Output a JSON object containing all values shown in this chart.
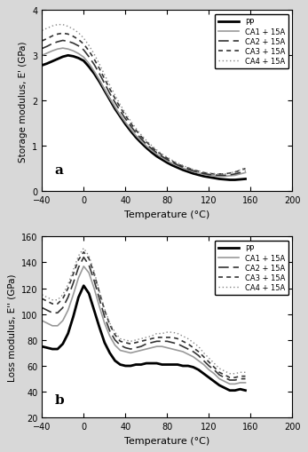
{
  "title_a": "a",
  "title_b": "b",
  "xlabel": "Temperature (°C)",
  "ylabel_a": "Storage modulus, E' (GPa)",
  "ylabel_b": "Loss modulus, E'' (GPa)",
  "xlim": [
    -40,
    200
  ],
  "xticks": [
    -40,
    0,
    40,
    80,
    120,
    160,
    200
  ],
  "ylim_a": [
    0,
    4.0
  ],
  "yticks_a": [
    0,
    1.0,
    2.0,
    3.0,
    4.0
  ],
  "ylim_b": [
    20,
    160
  ],
  "yticks_b": [
    20,
    40,
    60,
    80,
    100,
    120,
    140,
    160
  ],
  "legend_labels": [
    "PP",
    "CA1 + 15A",
    "CA2 + 15A",
    "CA3 + 15A",
    "CA4 + 15A"
  ],
  "line_styles": [
    {
      "color": "#000000",
      "lw": 2.0,
      "ls": "-"
    },
    {
      "color": "#999999",
      "lw": 1.2,
      "ls": "-"
    },
    {
      "color": "#333333",
      "lw": 1.2,
      "ls": "--",
      "dashes": [
        7,
        3
      ]
    },
    {
      "color": "#333333",
      "lw": 1.2,
      "ls": "--",
      "dashes": [
        3,
        2.5
      ]
    },
    {
      "color": "#888888",
      "lw": 1.0,
      "ls": ":",
      "dashes": [
        1,
        2
      ]
    }
  ],
  "temp": [
    -40,
    -35,
    -30,
    -25,
    -20,
    -15,
    -10,
    -5,
    0,
    5,
    10,
    15,
    20,
    25,
    30,
    35,
    40,
    45,
    50,
    55,
    60,
    65,
    70,
    75,
    80,
    85,
    90,
    95,
    100,
    105,
    110,
    115,
    120,
    125,
    130,
    135,
    140,
    145,
    150,
    155
  ],
  "storage_PP": [
    2.78,
    2.82,
    2.87,
    2.92,
    2.97,
    3.0,
    2.98,
    2.94,
    2.88,
    2.75,
    2.6,
    2.42,
    2.22,
    2.02,
    1.82,
    1.65,
    1.48,
    1.33,
    1.19,
    1.07,
    0.96,
    0.86,
    0.77,
    0.7,
    0.63,
    0.57,
    0.52,
    0.47,
    0.43,
    0.39,
    0.36,
    0.33,
    0.31,
    0.29,
    0.27,
    0.26,
    0.25,
    0.25,
    0.26,
    0.27
  ],
  "storage_CA1": [
    3.0,
    3.05,
    3.1,
    3.14,
    3.16,
    3.14,
    3.1,
    3.04,
    2.96,
    2.82,
    2.65,
    2.46,
    2.25,
    2.05,
    1.86,
    1.68,
    1.52,
    1.37,
    1.23,
    1.11,
    1.0,
    0.9,
    0.82,
    0.74,
    0.67,
    0.61,
    0.56,
    0.51,
    0.47,
    0.43,
    0.4,
    0.37,
    0.35,
    0.34,
    0.33,
    0.33,
    0.34,
    0.35,
    0.38,
    0.41
  ],
  "storage_CA2": [
    3.15,
    3.2,
    3.26,
    3.3,
    3.33,
    3.31,
    3.27,
    3.21,
    3.12,
    2.97,
    2.8,
    2.6,
    2.38,
    2.16,
    1.96,
    1.77,
    1.6,
    1.44,
    1.29,
    1.16,
    1.04,
    0.94,
    0.85,
    0.77,
    0.7,
    0.64,
    0.58,
    0.53,
    0.49,
    0.45,
    0.42,
    0.39,
    0.37,
    0.36,
    0.35,
    0.35,
    0.36,
    0.38,
    0.41,
    0.45
  ],
  "storage_CA3": [
    3.32,
    3.37,
    3.43,
    3.47,
    3.49,
    3.47,
    3.42,
    3.35,
    3.25,
    3.1,
    2.92,
    2.71,
    2.48,
    2.26,
    2.05,
    1.85,
    1.67,
    1.5,
    1.35,
    1.21,
    1.09,
    0.98,
    0.88,
    0.8,
    0.73,
    0.66,
    0.6,
    0.55,
    0.51,
    0.47,
    0.44,
    0.41,
    0.39,
    0.38,
    0.38,
    0.38,
    0.4,
    0.42,
    0.46,
    0.5
  ],
  "storage_CA4": [
    3.55,
    3.6,
    3.65,
    3.68,
    3.68,
    3.64,
    3.58,
    3.5,
    3.38,
    3.22,
    3.03,
    2.81,
    2.57,
    2.34,
    2.12,
    1.91,
    1.72,
    1.55,
    1.39,
    1.25,
    1.12,
    1.01,
    0.91,
    0.82,
    0.75,
    0.68,
    0.62,
    0.57,
    0.52,
    0.48,
    0.45,
    0.42,
    0.4,
    0.39,
    0.38,
    0.38,
    0.4,
    0.43,
    0.47,
    0.52
  ],
  "loss_PP": [
    75,
    74,
    73,
    73,
    77,
    85,
    98,
    113,
    122,
    116,
    103,
    90,
    78,
    70,
    64,
    61,
    60,
    60,
    61,
    61,
    62,
    62,
    62,
    61,
    61,
    61,
    61,
    60,
    60,
    59,
    57,
    54,
    51,
    48,
    45,
    43,
    41,
    41,
    42,
    41
  ],
  "loss_CA1": [
    95,
    93,
    91,
    91,
    95,
    103,
    115,
    128,
    137,
    132,
    120,
    106,
    93,
    83,
    76,
    72,
    71,
    70,
    71,
    72,
    73,
    74,
    75,
    75,
    74,
    73,
    72,
    71,
    69,
    67,
    64,
    61,
    57,
    54,
    50,
    48,
    46,
    46,
    47,
    47
  ],
  "loss_CA2": [
    105,
    103,
    101,
    101,
    105,
    113,
    124,
    136,
    144,
    138,
    126,
    112,
    98,
    87,
    80,
    76,
    74,
    73,
    74,
    75,
    77,
    78,
    79,
    79,
    79,
    78,
    77,
    75,
    73,
    71,
    68,
    64,
    60,
    57,
    53,
    51,
    49,
    49,
    50,
    50
  ],
  "loss_CA3": [
    112,
    110,
    108,
    108,
    112,
    120,
    131,
    142,
    148,
    143,
    131,
    117,
    103,
    92,
    84,
    79,
    78,
    77,
    78,
    79,
    80,
    81,
    82,
    82,
    82,
    82,
    81,
    79,
    77,
    74,
    71,
    67,
    63,
    59,
    55,
    53,
    51,
    51,
    52,
    52
  ],
  "loss_CA4": [
    115,
    113,
    111,
    111,
    115,
    123,
    134,
    145,
    151,
    145,
    133,
    118,
    104,
    93,
    86,
    81,
    80,
    79,
    80,
    81,
    82,
    83,
    85,
    85,
    86,
    86,
    85,
    83,
    81,
    78,
    75,
    70,
    66,
    62,
    58,
    56,
    54,
    54,
    55,
    55
  ],
  "fig_bg": "#d8d8d8",
  "plot_bg": "#ffffff"
}
